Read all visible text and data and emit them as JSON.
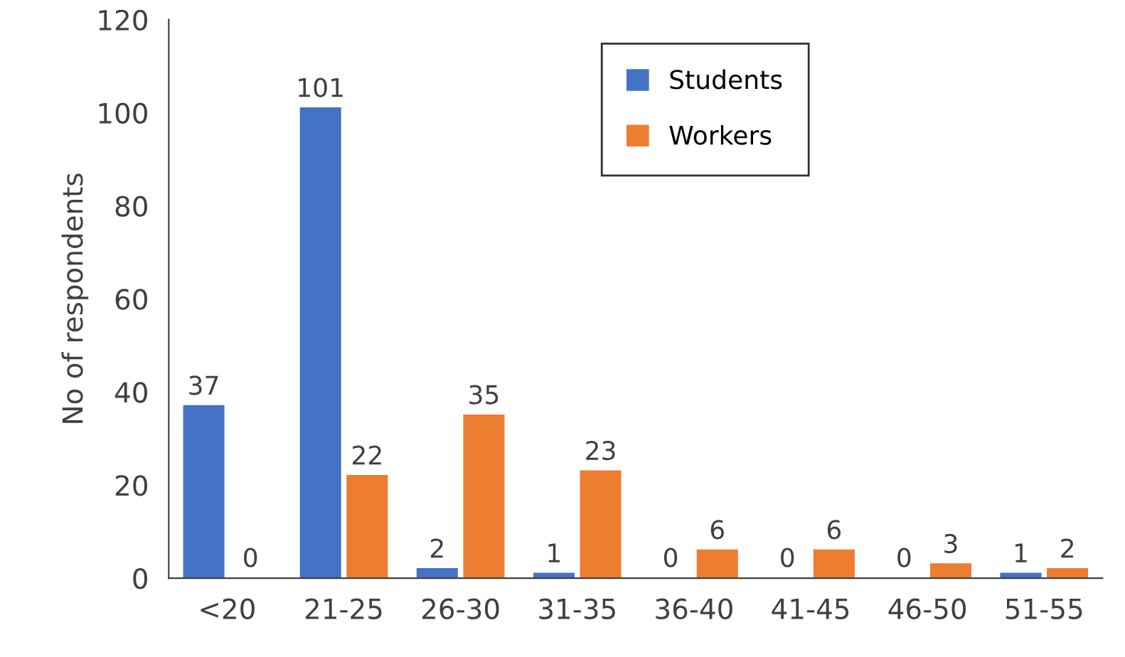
{
  "chart_data": {
    "type": "bar",
    "ylabel": "No of respondents",
    "categories": [
      "<20",
      "21-25",
      "26-30",
      "31-35",
      "36-40",
      "41-45",
      "46-50",
      "51-55"
    ],
    "series": [
      {
        "name": "Students",
        "color": "#4472c4",
        "values": [
          37,
          101,
          2,
          1,
          0,
          0,
          0,
          1
        ]
      },
      {
        "name": "Workers",
        "color": "#ed7d31",
        "values": [
          0,
          22,
          35,
          23,
          6,
          6,
          3,
          2
        ]
      }
    ],
    "ylim": [
      0,
      120
    ],
    "yticks": [
      0,
      20,
      40,
      60,
      80,
      100,
      120
    ],
    "grid": false,
    "legend": "top",
    "data_labels": true
  }
}
